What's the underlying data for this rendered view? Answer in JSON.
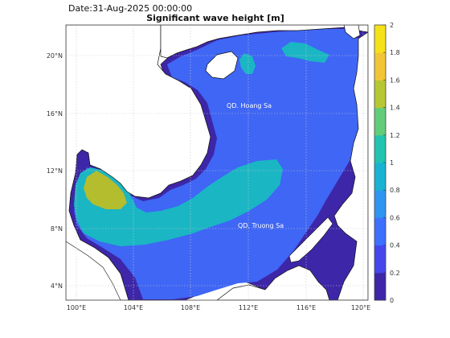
{
  "date_label": "Date:31-Aug-2025 00:00:00",
  "title": "Significant wave height [m]",
  "map_labels": [
    {
      "text": "QD. Hoang Sa",
      "lon": 112.0,
      "lat": 16.5
    },
    {
      "text": "QD. Truong Sa",
      "lon": 113.6,
      "lat": 7.85
    }
  ],
  "axes": {
    "lon_range": [
      99.3,
      120.3
    ],
    "lat_range": [
      3.0,
      22.0
    ],
    "lon_ticks": [
      100,
      104,
      108,
      112,
      116,
      120
    ],
    "lon_tick_labels": [
      "100°E",
      "104°E",
      "108°E",
      "112°E",
      "116°E",
      "120°E"
    ],
    "lat_ticks": [
      4,
      8,
      12,
      16,
      20
    ],
    "lat_tick_labels": [
      "4°N",
      "8°N",
      "12°N",
      "16°N",
      "20°N"
    ],
    "grid": true
  },
  "colorbar": {
    "range": [
      0,
      2
    ],
    "ticks": [
      0,
      0.2,
      0.4,
      0.6,
      0.8,
      1,
      1.2,
      1.4,
      1.6,
      1.8,
      2
    ],
    "tick_labels": [
      "0",
      "0.2",
      "0.4",
      "0.6",
      "0.8",
      "1",
      "1.2",
      "1.4",
      "1.6",
      "1.8",
      "2"
    ],
    "colors": [
      "#3e26a8",
      "#4746eb",
      "#3e70ff",
      "#2e95f0",
      "#1ab2d2",
      "#22c3b1",
      "#63cc79",
      "#b7c733",
      "#f2c539",
      "#f5e11a"
    ],
    "position": "right"
  },
  "colors": {
    "land": "#ffffff",
    "coast": "#111111",
    "grid": "#c8c8c8",
    "low_wave": "#3e26a8",
    "mid_wave": "#3f66f5",
    "high_wave": "#1ab6c4",
    "peak_wave": "#b3bd2d"
  }
}
